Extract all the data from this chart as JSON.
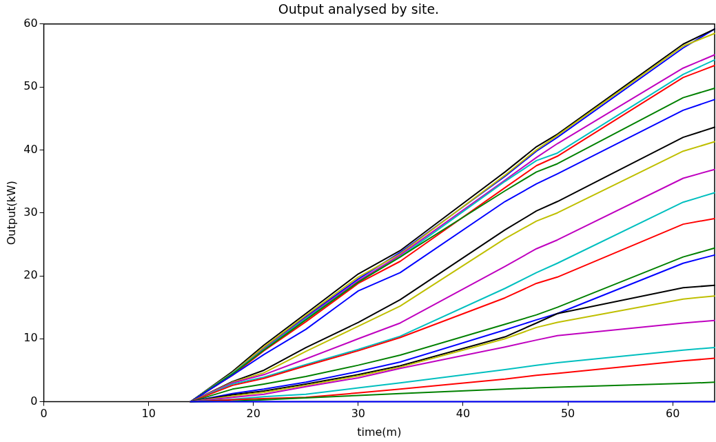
{
  "chart_data": {
    "type": "line",
    "title": "Output analysed by site.",
    "xlabel": "time(m)",
    "ylabel": "Output(kW)",
    "x": [
      14,
      18,
      21,
      25,
      30,
      34,
      44,
      47,
      49,
      61,
      64
    ],
    "xlim": [
      0,
      64
    ],
    "xticks": [
      0,
      10,
      20,
      30,
      40,
      50,
      60
    ],
    "ylim": [
      0,
      60
    ],
    "yticks": [
      0,
      10,
      20,
      30,
      40,
      50,
      60
    ],
    "grid": false,
    "legend": false,
    "marker": "none",
    "line_style": "solid",
    "series": [
      {
        "color": "#0000ff",
        "values": [
          0,
          0,
          0,
          0,
          0,
          0,
          0,
          0,
          0,
          0,
          0
        ]
      },
      {
        "color": "#008000",
        "values": [
          0,
          0.1,
          0.3,
          0.6,
          1,
          1.3,
          2,
          2.2,
          2.3,
          2.9,
          3.1
        ]
      },
      {
        "color": "#ff0000",
        "values": [
          0,
          0.3,
          0.5,
          0.7,
          1.4,
          2,
          3.6,
          4.2,
          4.5,
          6.5,
          6.9
        ]
      },
      {
        "color": "#00bfbf",
        "values": [
          0,
          0.4,
          0.8,
          1.2,
          2.2,
          3,
          5.1,
          5.8,
          6.2,
          8.2,
          8.6
        ]
      },
      {
        "color": "#bf00bf",
        "values": [
          0,
          0.7,
          1.2,
          2.4,
          3.8,
          5.3,
          8.7,
          9.8,
          10.5,
          12.5,
          12.9
        ]
      },
      {
        "color": "#bfbf00",
        "values": [
          0,
          0.9,
          1.5,
          2.6,
          4.1,
          5.5,
          10,
          11.8,
          12.6,
          16.3,
          16.8
        ]
      },
      {
        "color": "#000000",
        "values": [
          0,
          1.1,
          1.7,
          2.8,
          4.3,
          5.7,
          10.3,
          12.5,
          14,
          18.1,
          18.5
        ]
      },
      {
        "color": "#0000ff",
        "values": [
          0,
          1.3,
          2,
          3.1,
          4.8,
          6.3,
          11.4,
          13,
          14,
          22,
          23.3
        ]
      },
      {
        "color": "#008000",
        "values": [
          0,
          2,
          2.8,
          4,
          5.8,
          7.4,
          12.3,
          13.8,
          15,
          23,
          24.4
        ]
      },
      {
        "color": "#ff0000",
        "values": [
          0,
          2.6,
          3.7,
          5.7,
          8.1,
          10.2,
          16.5,
          18.8,
          19.8,
          28.2,
          29.1
        ]
      },
      {
        "color": "#00bfbf",
        "values": [
          0,
          2.8,
          3.9,
          5.9,
          8.3,
          10.4,
          18,
          20.5,
          22,
          31.7,
          33.2
        ]
      },
      {
        "color": "#bf00bf",
        "values": [
          0,
          3,
          4.3,
          6.8,
          10,
          12.5,
          21.5,
          24.3,
          25.7,
          35.5,
          36.9
        ]
      },
      {
        "color": "#bfbf00",
        "values": [
          0,
          3.1,
          4.6,
          8,
          12,
          15.2,
          25.9,
          28.7,
          30,
          39.8,
          41.3
        ]
      },
      {
        "color": "#000000",
        "values": [
          0,
          3.2,
          5,
          8.6,
          12.6,
          16.2,
          27.3,
          30.3,
          31.8,
          42,
          43.6
        ]
      },
      {
        "color": "#0000ff",
        "values": [
          0,
          4.2,
          7.5,
          11.5,
          17.6,
          20.5,
          31.8,
          34.6,
          36.2,
          46.3,
          48
        ]
      },
      {
        "color": "#008000",
        "values": [
          0,
          4.4,
          8.2,
          13,
          19,
          23,
          33.5,
          36.5,
          37.8,
          48.3,
          49.8
        ]
      },
      {
        "color": "#ff0000",
        "values": [
          0,
          4.2,
          8.1,
          12.7,
          18.8,
          22.3,
          34,
          37.5,
          39,
          51.5,
          53.4
        ]
      },
      {
        "color": "#00bfbf",
        "values": [
          0,
          4.5,
          8.3,
          13.2,
          19,
          23,
          35,
          38.3,
          39.5,
          52,
          54.3
        ]
      },
      {
        "color": "#bf00bf",
        "values": [
          0,
          4.5,
          8.4,
          13.3,
          19.2,
          23.3,
          35.2,
          38.8,
          41,
          53,
          55.1
        ]
      },
      {
        "color": "#bfbf00",
        "values": [
          0,
          4.6,
          8.7,
          13.7,
          19.8,
          23.5,
          36,
          40,
          42.3,
          56.5,
          58.5
        ]
      },
      {
        "color": "#000000",
        "values": [
          0,
          4.8,
          9,
          14,
          20.3,
          24,
          36.5,
          40.5,
          42.5,
          56.8,
          59.2
        ]
      },
      {
        "color": "#0000ff",
        "values": [
          0,
          4.6,
          8.5,
          13.5,
          19.5,
          23.7,
          35.8,
          39.8,
          42,
          56.2,
          59.2
        ]
      }
    ]
  }
}
